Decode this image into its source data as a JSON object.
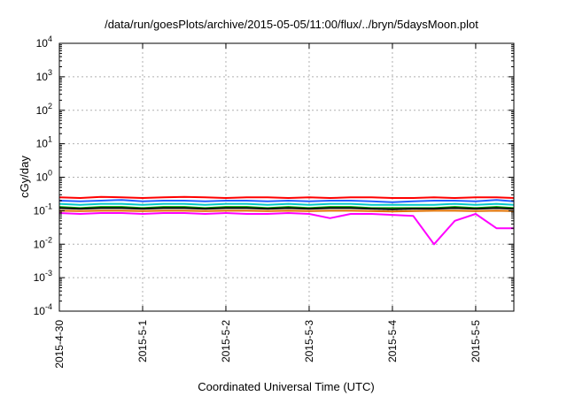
{
  "chart_data": {
    "type": "line",
    "title": "/data/run/goesPlots/archive/2015-05-05/11:00/flux/../bryn/5daysMoon.plot",
    "xlabel": "Coordinated Universal Time (UTC)",
    "ylabel": "cGy/day",
    "yscale": "log",
    "ylim": [
      0.0001,
      10000
    ],
    "xlim": [
      "2015-04-30 00:00",
      "2015-05-05 11:00"
    ],
    "grid": true,
    "legend": "none",
    "yticks": [
      {
        "base": "10",
        "exp": "-4"
      },
      {
        "base": "10",
        "exp": "-3"
      },
      {
        "base": "10",
        "exp": "-2"
      },
      {
        "base": "10",
        "exp": "-1"
      },
      {
        "base": "10",
        "exp": "0"
      },
      {
        "base": "10",
        "exp": "1"
      },
      {
        "base": "10",
        "exp": "2"
      },
      {
        "base": "10",
        "exp": "3"
      },
      {
        "base": "10",
        "exp": "4"
      }
    ],
    "xticks": [
      {
        "label": "2015-4-30",
        "value": "2015-04-30 00:00"
      },
      {
        "label": "2015-5-1",
        "value": "2015-05-01 00:00"
      },
      {
        "label": "2015-5-2",
        "value": "2015-05-02 00:00"
      },
      {
        "label": "2015-5-3",
        "value": "2015-05-03 00:00"
      },
      {
        "label": "2015-5-4",
        "value": "2015-05-04 00:00"
      },
      {
        "label": "2015-5-5",
        "value": "2015-05-05 00:00"
      }
    ],
    "x": [
      "2015-04-30 00:00",
      "2015-04-30 06:00",
      "2015-04-30 12:00",
      "2015-04-30 18:00",
      "2015-05-01 00:00",
      "2015-05-01 06:00",
      "2015-05-01 12:00",
      "2015-05-01 18:00",
      "2015-05-02 00:00",
      "2015-05-02 06:00",
      "2015-05-02 12:00",
      "2015-05-02 18:00",
      "2015-05-03 00:00",
      "2015-05-03 06:00",
      "2015-05-03 12:00",
      "2015-05-03 18:00",
      "2015-05-04 00:00",
      "2015-05-04 06:00",
      "2015-05-04 12:00",
      "2015-05-04 18:00",
      "2015-05-05 00:00",
      "2015-05-05 06:00",
      "2015-05-05 11:00"
    ],
    "series": [
      {
        "color": "#ff0000",
        "values": [
          0.25,
          0.24,
          0.26,
          0.25,
          0.24,
          0.25,
          0.26,
          0.25,
          0.24,
          0.25,
          0.25,
          0.24,
          0.25,
          0.24,
          0.25,
          0.25,
          0.24,
          0.24,
          0.25,
          0.24,
          0.25,
          0.25,
          0.24
        ]
      },
      {
        "color": "#2060ff",
        "values": [
          0.2,
          0.19,
          0.2,
          0.21,
          0.19,
          0.2,
          0.2,
          0.19,
          0.2,
          0.2,
          0.19,
          0.2,
          0.19,
          0.2,
          0.2,
          0.19,
          0.18,
          0.19,
          0.2,
          0.2,
          0.19,
          0.21,
          0.19
        ]
      },
      {
        "color": "#00c8c8",
        "values": [
          0.16,
          0.15,
          0.16,
          0.16,
          0.15,
          0.16,
          0.16,
          0.15,
          0.16,
          0.16,
          0.15,
          0.16,
          0.15,
          0.16,
          0.16,
          0.15,
          0.15,
          0.15,
          0.15,
          0.16,
          0.15,
          0.16,
          0.15
        ]
      },
      {
        "color": "#00b000",
        "values": [
          0.13,
          0.12,
          0.13,
          0.13,
          0.12,
          0.13,
          0.13,
          0.12,
          0.13,
          0.13,
          0.12,
          0.13,
          0.12,
          0.13,
          0.13,
          0.12,
          0.12,
          0.12,
          0.12,
          0.13,
          0.12,
          0.13,
          0.12
        ]
      },
      {
        "color": "#000000",
        "values": [
          0.12,
          0.115,
          0.12,
          0.12,
          0.115,
          0.12,
          0.12,
          0.115,
          0.12,
          0.12,
          0.115,
          0.12,
          0.115,
          0.12,
          0.12,
          0.115,
          0.11,
          0.115,
          0.115,
          0.12,
          0.115,
          0.12,
          0.115
        ]
      },
      {
        "color": "#e07000",
        "values": [
          0.1,
          0.098,
          0.1,
          0.1,
          0.098,
          0.1,
          0.1,
          0.098,
          0.1,
          0.1,
          0.098,
          0.1,
          0.098,
          0.1,
          0.1,
          0.098,
          0.095,
          0.098,
          0.1,
          0.1,
          0.098,
          0.1,
          0.098
        ]
      },
      {
        "color": "#ff00ff",
        "values": [
          0.085,
          0.08,
          0.085,
          0.085,
          0.08,
          0.085,
          0.085,
          0.08,
          0.085,
          0.08,
          0.08,
          0.085,
          0.08,
          0.06,
          0.08,
          0.08,
          0.075,
          0.07,
          0.01,
          0.05,
          0.08,
          0.03,
          0.03
        ]
      }
    ]
  }
}
